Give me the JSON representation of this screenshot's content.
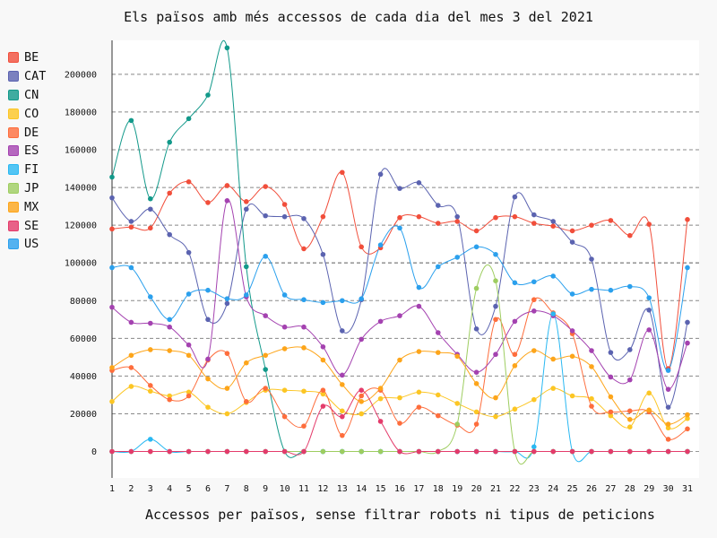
{
  "chart_data": {
    "type": "line",
    "title": "Els països amb més accessos de cada dia del mes 3 del 2021",
    "subtitle": "Accessos per països, sense filtrar robots ni tipus de peticions",
    "x": [
      1,
      2,
      3,
      4,
      5,
      6,
      7,
      8,
      9,
      10,
      11,
      12,
      13,
      14,
      15,
      16,
      17,
      18,
      19,
      20,
      21,
      22,
      23,
      24,
      25,
      26,
      27,
      28,
      29,
      30,
      31
    ],
    "xlabel": "",
    "ylabel": "",
    "ylim": [
      -14000,
      218000
    ],
    "yticks": [
      0,
      20000,
      40000,
      60000,
      80000,
      100000,
      120000,
      140000,
      160000,
      180000,
      200000
    ],
    "grid": "horizontal-dashed",
    "legend_position": "left",
    "series": [
      {
        "name": "BE",
        "color": "#f14e3b",
        "values": [
          118000,
          119000,
          118500,
          137000,
          143000,
          132000,
          141000,
          132500,
          140500,
          131000,
          107500,
          124500,
          148000,
          108500,
          108000,
          124000,
          124500,
          121000,
          122000,
          117000,
          124000,
          124500,
          121000,
          119500,
          117000,
          120000,
          122500,
          114500,
          120500,
          44000,
          123000
        ]
      },
      {
        "name": "CAT",
        "color": "#5b63b0",
        "values": [
          134500,
          122000,
          128500,
          115000,
          105500,
          70000,
          78500,
          128500,
          125000,
          124500,
          123500,
          104500,
          64000,
          80500,
          147000,
          139500,
          142500,
          130500,
          124500,
          65000,
          77000,
          135000,
          125500,
          122000,
          111000,
          102000,
          52500,
          54000,
          75000,
          23500,
          68500
        ]
      },
      {
        "name": "CN",
        "color": "#12998a",
        "values": [
          145500,
          175500,
          134000,
          164000,
          176500,
          189000,
          214000,
          98000,
          43500,
          0,
          0,
          0,
          0,
          0,
          0,
          0,
          0,
          0,
          0,
          0,
          0,
          0,
          0,
          0,
          0,
          0,
          0,
          0,
          0,
          0,
          0
        ]
      },
      {
        "name": "CO",
        "color": "#fcc624",
        "values": [
          26500,
          34500,
          32000,
          29500,
          31500,
          23500,
          20000,
          26000,
          32500,
          32500,
          32000,
          30500,
          21500,
          20000,
          28000,
          28500,
          31500,
          30000,
          25500,
          21000,
          18500,
          22500,
          27500,
          33500,
          29500,
          28000,
          19000,
          13000,
          31000,
          12500,
          17500
        ]
      },
      {
        "name": "DE",
        "color": "#fe6d3c",
        "values": [
          43000,
          44500,
          35000,
          27500,
          29500,
          48500,
          52000,
          26500,
          33500,
          18500,
          13500,
          32500,
          8500,
          29500,
          32500,
          15000,
          23500,
          19000,
          14000,
          14500,
          70000,
          51500,
          80500,
          73500,
          62500,
          24000,
          21000,
          21500,
          21000,
          6500,
          12000
        ]
      },
      {
        "name": "ES",
        "color": "#a442b0",
        "values": [
          76500,
          68500,
          68000,
          66000,
          56500,
          49000,
          133000,
          82000,
          72000,
          66000,
          66000,
          55500,
          40500,
          59500,
          69000,
          72000,
          77000,
          63000,
          51500,
          42000,
          51500,
          69000,
          74500,
          72000,
          64000,
          53500,
          39500,
          38000,
          64500,
          33000,
          57500
        ]
      },
      {
        "name": "FI",
        "color": "#29b8f2",
        "values": [
          0,
          0,
          6500,
          0,
          0,
          0,
          0,
          0,
          0,
          0,
          0,
          0,
          0,
          0,
          0,
          0,
          0,
          0,
          0,
          0,
          0,
          0,
          2500,
          73000,
          0,
          0,
          0,
          0,
          0,
          0,
          0
        ]
      },
      {
        "name": "JP",
        "color": "#9ecd60",
        "values": [
          0,
          0,
          0,
          0,
          0,
          0,
          0,
          0,
          0,
          0,
          0,
          0,
          0,
          0,
          0,
          0,
          0,
          0,
          14500,
          86500,
          90500,
          0,
          0,
          0,
          0,
          0,
          0,
          0,
          0,
          0,
          0
        ]
      },
      {
        "name": "MX",
        "color": "#fda51a",
        "values": [
          44500,
          51000,
          54000,
          53500,
          51000,
          38500,
          33500,
          47000,
          51000,
          54500,
          55000,
          48500,
          35500,
          26500,
          33500,
          48500,
          53000,
          52500,
          50500,
          36000,
          28500,
          45500,
          53500,
          49000,
          50500,
          45000,
          29000,
          17000,
          22000,
          14500,
          19500
        ]
      },
      {
        "name": "SE",
        "color": "#e43b6b",
        "values": [
          0,
          0,
          0,
          0,
          0,
          0,
          0,
          0,
          0,
          0,
          0,
          24000,
          18500,
          32500,
          16000,
          0,
          0,
          0,
          0,
          0,
          0,
          0,
          0,
          0,
          0,
          0,
          0,
          0,
          0,
          0,
          0
        ]
      },
      {
        "name": "US",
        "color": "#2ba0ed",
        "values": [
          97500,
          97500,
          82000,
          70000,
          83500,
          85500,
          81000,
          83000,
          103500,
          83000,
          80500,
          79000,
          80000,
          81000,
          109500,
          118500,
          87000,
          98000,
          103000,
          108500,
          104500,
          89500,
          90000,
          93000,
          83500,
          86000,
          85500,
          87500,
          81500,
          43000,
          97500
        ]
      }
    ]
  }
}
